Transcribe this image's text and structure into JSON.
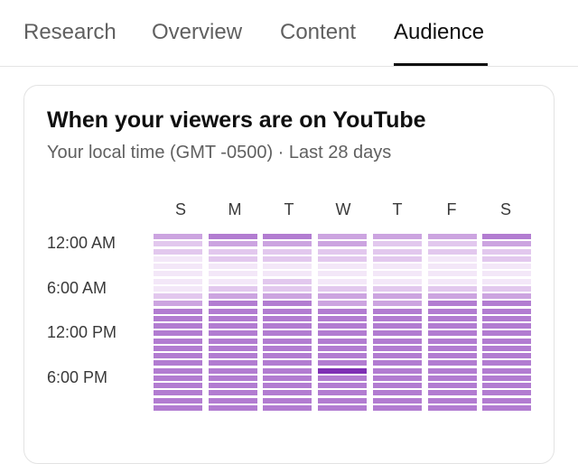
{
  "tabs": [
    {
      "label": "Research",
      "active": false
    },
    {
      "label": "Overview",
      "active": false
    },
    {
      "label": "Content",
      "active": false
    },
    {
      "label": "Audience",
      "active": true
    }
  ],
  "card": {
    "title": "When your viewers are on YouTube",
    "subtitle": "Your local time (GMT -0500) · Last 28 days"
  },
  "chart_data": {
    "type": "heatmap",
    "x_categories": [
      "S",
      "M",
      "T",
      "W",
      "T",
      "F",
      "S"
    ],
    "y_tick_labels": [
      "12:00 AM",
      "6:00 AM",
      "12:00 PM",
      "6:00 PM"
    ],
    "rows_per_column": 24,
    "color_scale": [
      "#f3e7f8",
      "#e2c8ee",
      "#cca4e0",
      "#b27cd1",
      "#9a5ac4",
      "#7e2fb4"
    ],
    "levels": [
      [
        2,
        3,
        3,
        2,
        2,
        2,
        3
      ],
      [
        1,
        2,
        2,
        2,
        1,
        1,
        2
      ],
      [
        1,
        1,
        1,
        1,
        1,
        1,
        1
      ],
      [
        0,
        1,
        1,
        1,
        1,
        0,
        1
      ],
      [
        0,
        0,
        0,
        0,
        0,
        0,
        0
      ],
      [
        0,
        0,
        0,
        0,
        0,
        0,
        0
      ],
      [
        0,
        0,
        1,
        0,
        0,
        0,
        0
      ],
      [
        0,
        1,
        1,
        1,
        1,
        1,
        1
      ],
      [
        1,
        2,
        2,
        2,
        2,
        2,
        2
      ],
      [
        2,
        3,
        3,
        2,
        2,
        3,
        3
      ],
      [
        3,
        3,
        3,
        3,
        3,
        3,
        3
      ],
      [
        3,
        3,
        3,
        3,
        3,
        3,
        3
      ],
      [
        3,
        3,
        3,
        3,
        3,
        3,
        3
      ],
      [
        3,
        3,
        3,
        3,
        3,
        3,
        3
      ],
      [
        3,
        3,
        3,
        3,
        3,
        3,
        3
      ],
      [
        3,
        3,
        3,
        3,
        3,
        3,
        3
      ],
      [
        3,
        3,
        3,
        3,
        3,
        3,
        3
      ],
      [
        3,
        3,
        3,
        3,
        3,
        3,
        3
      ],
      [
        3,
        3,
        3,
        5,
        3,
        3,
        3
      ],
      [
        3,
        3,
        3,
        3,
        3,
        3,
        3
      ],
      [
        3,
        3,
        3,
        3,
        3,
        3,
        3
      ],
      [
        3,
        3,
        3,
        3,
        3,
        3,
        3
      ],
      [
        3,
        3,
        3,
        3,
        3,
        3,
        3
      ],
      [
        3,
        3,
        3,
        3,
        3,
        3,
        3
      ]
    ]
  }
}
